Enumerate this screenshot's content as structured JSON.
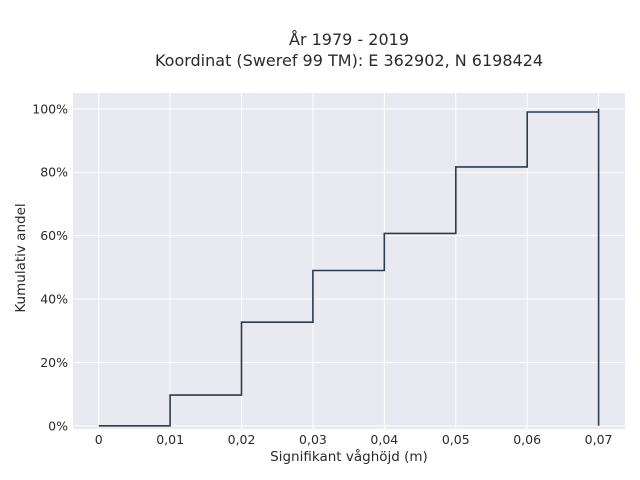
{
  "chart_data": {
    "type": "line",
    "line_shape": "step",
    "title_lines": [
      "År 1979 - 2019",
      "Koordinat (Sweref 99 TM): E 362902, N 6198424"
    ],
    "xlabel": "Signifikant våghöjd (m)",
    "ylabel": "Kumulativ andel",
    "xlim": [
      -0.0036,
      0.0737
    ],
    "ylim": [
      -0.01,
      1.05
    ],
    "x_ticks": [
      0,
      0.01,
      0.02,
      0.03,
      0.04,
      0.05,
      0.06,
      0.07
    ],
    "x_tick_labels": [
      "0",
      "0,01",
      "0,02",
      "0,03",
      "0,04",
      "0,05",
      "0,06",
      "0,07"
    ],
    "y_ticks": [
      0,
      0.2,
      0.4,
      0.6,
      0.8,
      1.0
    ],
    "y_tick_labels": [
      "0%",
      "20%",
      "40%",
      "60%",
      "80%",
      "100%"
    ],
    "grid": true,
    "series": [
      {
        "x": [
          0,
          0.01,
          0.01,
          0.02,
          0.02,
          0.03,
          0.03,
          0.04,
          0.04,
          0.05,
          0.05,
          0.06,
          0.06,
          0.07,
          0.07,
          0.07
        ],
        "y": [
          0,
          0,
          0.097,
          0.097,
          0.327,
          0.327,
          0.49,
          0.49,
          0.607,
          0.607,
          0.817,
          0.817,
          0.99,
          0.99,
          1.0,
          0
        ],
        "color": "#2f3b4a"
      }
    ],
    "colors": {
      "plot_bg": "#e9e9f1",
      "grid": "#ffffff",
      "line": "#2f3b4a",
      "text": "#2a2a2a"
    }
  }
}
